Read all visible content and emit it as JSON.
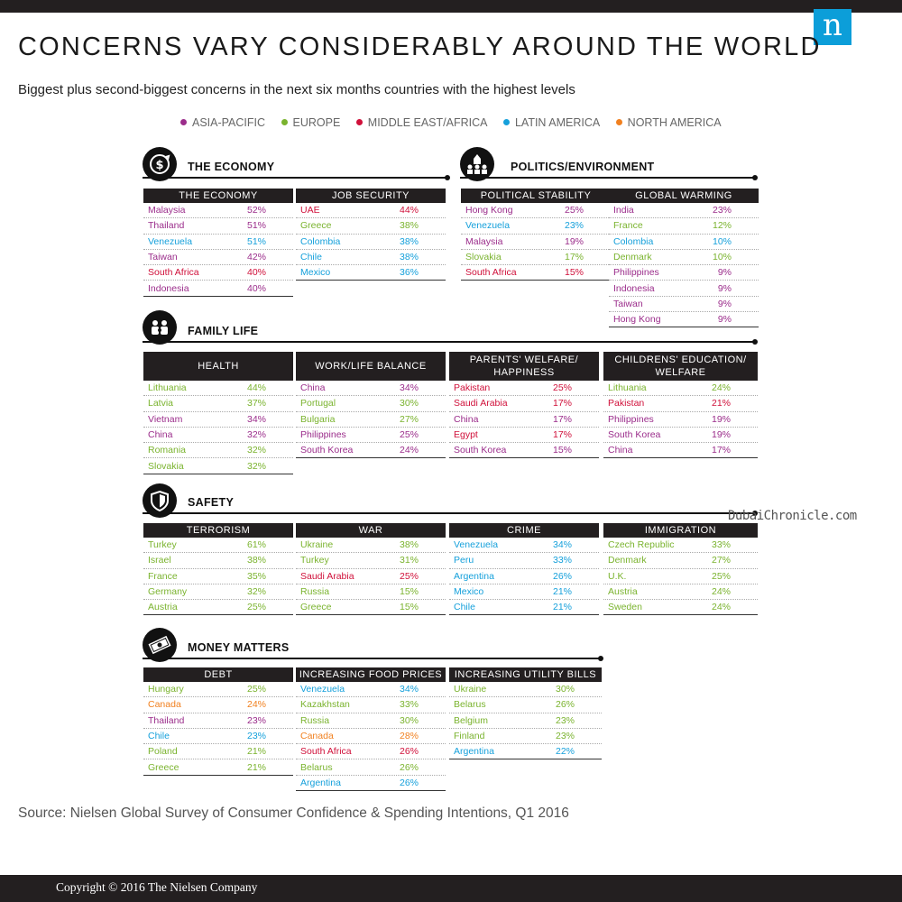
{
  "title": "CONCERNS VARY CONSIDERABLY AROUND THE WORLD",
  "subtitle": "Biggest plus second-biggest concerns in the next six months countries with the highest levels",
  "logo": "n",
  "legend": [
    {
      "label": "ASIA-PACIFIC",
      "color": "#9b2d8b"
    },
    {
      "label": "EUROPE",
      "color": "#7ab32e"
    },
    {
      "label": "MIDDLE EAST/AFRICA",
      "color": "#d0103a"
    },
    {
      "label": "LATIN AMERICA",
      "color": "#15a0db"
    },
    {
      "label": "NORTH AMERICA",
      "color": "#f1801f"
    }
  ],
  "sections": {
    "economy": {
      "title": "THE ECONOMY",
      "icon": "dollar-refresh-icon"
    },
    "politics": {
      "title": "POLITICS/ENVIRONMENT",
      "icon": "capitol-people-icon"
    },
    "family": {
      "title": "FAMILY LIFE",
      "icon": "family-icon"
    },
    "safety": {
      "title": "SAFETY",
      "icon": "shield-icon"
    },
    "money": {
      "title": "MONEY MATTERS",
      "icon": "money-bill-icon"
    }
  },
  "tables": {
    "the_economy": {
      "header": "THE ECONOMY",
      "rows": [
        {
          "country": "Malaysia",
          "value": "52%",
          "region": "ap"
        },
        {
          "country": "Thailand",
          "value": "51%",
          "region": "ap"
        },
        {
          "country": "Venezuela",
          "value": "51%",
          "region": "la"
        },
        {
          "country": "Taiwan",
          "value": "42%",
          "region": "ap"
        },
        {
          "country": "South Africa",
          "value": "40%",
          "region": "me"
        },
        {
          "country": "Indonesia",
          "value": "40%",
          "region": "ap"
        }
      ]
    },
    "job_security": {
      "header": "JOB SECURITY",
      "rows": [
        {
          "country": "UAE",
          "value": "44%",
          "region": "me"
        },
        {
          "country": "Greece",
          "value": "38%",
          "region": "eu"
        },
        {
          "country": "Colombia",
          "value": "38%",
          "region": "la"
        },
        {
          "country": "Chile",
          "value": "38%",
          "region": "la"
        },
        {
          "country": "Mexico",
          "value": "36%",
          "region": "la"
        }
      ]
    },
    "political_stability": {
      "header": "POLITICAL STABILITY",
      "rows": [
        {
          "country": "Hong Kong",
          "value": "25%",
          "region": "ap"
        },
        {
          "country": "Venezuela",
          "value": "23%",
          "region": "la"
        },
        {
          "country": "Malaysia",
          "value": "19%",
          "region": "ap"
        },
        {
          "country": "Slovakia",
          "value": "17%",
          "region": "eu"
        },
        {
          "country": "South Africa",
          "value": "15%",
          "region": "me"
        }
      ]
    },
    "global_warming": {
      "header": "GLOBAL WARMING",
      "rows": [
        {
          "country": "India",
          "value": "23%",
          "region": "ap"
        },
        {
          "country": "France",
          "value": "12%",
          "region": "eu"
        },
        {
          "country": "Colombia",
          "value": "10%",
          "region": "la"
        },
        {
          "country": "Denmark",
          "value": "10%",
          "region": "eu"
        },
        {
          "country": "Philippines",
          "value": "9%",
          "region": "ap"
        },
        {
          "country": "Indonesia",
          "value": "9%",
          "region": "ap"
        },
        {
          "country": "Taiwan",
          "value": "9%",
          "region": "ap"
        },
        {
          "country": "Hong Kong",
          "value": "9%",
          "region": "ap"
        }
      ]
    },
    "health": {
      "header": "HEALTH",
      "rows": [
        {
          "country": "Lithuania",
          "value": "44%",
          "region": "eu"
        },
        {
          "country": "Latvia",
          "value": "37%",
          "region": "eu"
        },
        {
          "country": "Vietnam",
          "value": "34%",
          "region": "ap"
        },
        {
          "country": "China",
          "value": "32%",
          "region": "ap"
        },
        {
          "country": "Romania",
          "value": "32%",
          "region": "eu"
        },
        {
          "country": "Slovakia",
          "value": "32%",
          "region": "eu"
        }
      ]
    },
    "work_life": {
      "header": "WORK/LIFE BALANCE",
      "rows": [
        {
          "country": "China",
          "value": "34%",
          "region": "ap"
        },
        {
          "country": "Portugal",
          "value": "30%",
          "region": "eu"
        },
        {
          "country": "Bulgaria",
          "value": "27%",
          "region": "eu"
        },
        {
          "country": "Philippines",
          "value": "25%",
          "region": "ap"
        },
        {
          "country": "South Korea",
          "value": "24%",
          "region": "ap"
        }
      ]
    },
    "parents_welfare": {
      "header_1": "PARENTS' WELFARE/",
      "header_2": "HAPPINESS",
      "rows": [
        {
          "country": "Pakistan",
          "value": "25%",
          "region": "me"
        },
        {
          "country": "Saudi Arabia",
          "value": "17%",
          "region": "me"
        },
        {
          "country": "China",
          "value": "17%",
          "region": "ap"
        },
        {
          "country": "Egypt",
          "value": "17%",
          "region": "me"
        },
        {
          "country": "South Korea",
          "value": "15%",
          "region": "ap"
        }
      ]
    },
    "childrens_education": {
      "header_1": "CHILDRENS' EDUCATION/",
      "header_2": "WELFARE",
      "rows": [
        {
          "country": "Lithuania",
          "value": "24%",
          "region": "eu"
        },
        {
          "country": "Pakistan",
          "value": "21%",
          "region": "me"
        },
        {
          "country": "Philippines",
          "value": "19%",
          "region": "ap"
        },
        {
          "country": "South Korea",
          "value": "19%",
          "region": "ap"
        },
        {
          "country": "China",
          "value": "17%",
          "region": "ap"
        }
      ]
    },
    "terrorism": {
      "header": "TERRORISM",
      "rows": [
        {
          "country": "Turkey",
          "value": "61%",
          "region": "eu"
        },
        {
          "country": "Israel",
          "value": "38%",
          "region": "eu"
        },
        {
          "country": "France",
          "value": "35%",
          "region": "eu"
        },
        {
          "country": "Germany",
          "value": "32%",
          "region": "eu"
        },
        {
          "country": "Austria",
          "value": "25%",
          "region": "eu"
        }
      ]
    },
    "war": {
      "header": "WAR",
      "rows": [
        {
          "country": "Ukraine",
          "value": "38%",
          "region": "eu"
        },
        {
          "country": "Turkey",
          "value": "31%",
          "region": "eu"
        },
        {
          "country": "Saudi Arabia",
          "value": "25%",
          "region": "me"
        },
        {
          "country": "Russia",
          "value": "15%",
          "region": "eu"
        },
        {
          "country": "Greece",
          "value": "15%",
          "region": "eu"
        }
      ]
    },
    "crime": {
      "header": "CRIME",
      "rows": [
        {
          "country": "Venezuela",
          "value": "34%",
          "region": "la"
        },
        {
          "country": "Peru",
          "value": "33%",
          "region": "la"
        },
        {
          "country": "Argentina",
          "value": "26%",
          "region": "la"
        },
        {
          "country": "Mexico",
          "value": "21%",
          "region": "la"
        },
        {
          "country": "Chile",
          "value": "21%",
          "region": "la"
        }
      ]
    },
    "immigration": {
      "header": "IMMIGRATION",
      "rows": [
        {
          "country": "Czech Republic",
          "value": "33%",
          "region": "eu"
        },
        {
          "country": "Denmark",
          "value": "27%",
          "region": "eu"
        },
        {
          "country": "U.K.",
          "value": "25%",
          "region": "eu"
        },
        {
          "country": "Austria",
          "value": "24%",
          "region": "eu"
        },
        {
          "country": "Sweden",
          "value": "24%",
          "region": "eu"
        }
      ]
    },
    "debt": {
      "header": "DEBT",
      "rows": [
        {
          "country": "Hungary",
          "value": "25%",
          "region": "eu"
        },
        {
          "country": "Canada",
          "value": "24%",
          "region": "na"
        },
        {
          "country": "Thailand",
          "value": "23%",
          "region": "ap"
        },
        {
          "country": "Chile",
          "value": "23%",
          "region": "la"
        },
        {
          "country": "Poland",
          "value": "21%",
          "region": "eu"
        },
        {
          "country": "Greece",
          "value": "21%",
          "region": "eu"
        }
      ]
    },
    "food_prices": {
      "header": "INCREASING FOOD PRICES",
      "rows": [
        {
          "country": "Venezuela",
          "value": "34%",
          "region": "la"
        },
        {
          "country": "Kazakhstan",
          "value": "33%",
          "region": "eu"
        },
        {
          "country": "Russia",
          "value": "30%",
          "region": "eu"
        },
        {
          "country": "Canada",
          "value": "28%",
          "region": "na"
        },
        {
          "country": "South Africa",
          "value": "26%",
          "region": "me"
        },
        {
          "country": "Belarus",
          "value": "26%",
          "region": "eu"
        },
        {
          "country": "Argentina",
          "value": "26%",
          "region": "la"
        }
      ]
    },
    "utility_bills": {
      "header": "INCREASING UTILITY BILLS",
      "rows": [
        {
          "country": "Ukraine",
          "value": "30%",
          "region": "eu"
        },
        {
          "country": "Belarus",
          "value": "26%",
          "region": "eu"
        },
        {
          "country": "Belgium",
          "value": "23%",
          "region": "eu"
        },
        {
          "country": "Finland",
          "value": "23%",
          "region": "eu"
        },
        {
          "country": "Argentina",
          "value": "22%",
          "region": "la"
        }
      ]
    }
  },
  "watermark": "DubaiChronicle.com",
  "source": "Source: Nielsen Global Survey of Consumer Confidence & Spending Intentions, Q1 2016",
  "footer": "Copyright © 2016 The Nielsen Company"
}
